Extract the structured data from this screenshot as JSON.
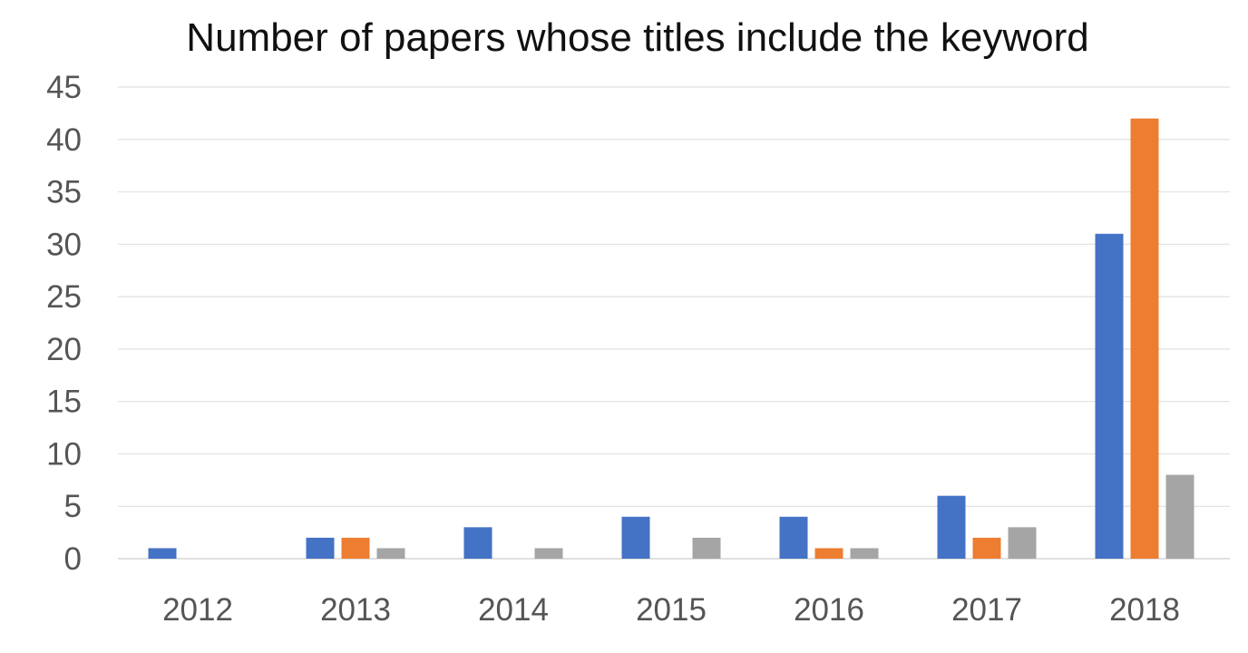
{
  "chart_data": {
    "type": "bar",
    "title": "Number of papers whose titles include the keyword",
    "categories": [
      "2012",
      "2013",
      "2014",
      "2015",
      "2016",
      "2017",
      "2018"
    ],
    "series": [
      {
        "color": "#4472C4",
        "values": [
          1,
          2,
          3,
          4,
          4,
          6,
          31
        ]
      },
      {
        "color": "#ED7D31",
        "values": [
          0,
          2,
          0,
          0,
          1,
          2,
          42
        ]
      },
      {
        "color": "#A5A5A5",
        "values": [
          0,
          1,
          1,
          2,
          1,
          3,
          8
        ]
      }
    ],
    "ylim": [
      0,
      45
    ],
    "yticks": [
      0,
      5,
      10,
      15,
      20,
      25,
      30,
      35,
      40,
      45
    ],
    "grid": true,
    "legend": "none"
  }
}
